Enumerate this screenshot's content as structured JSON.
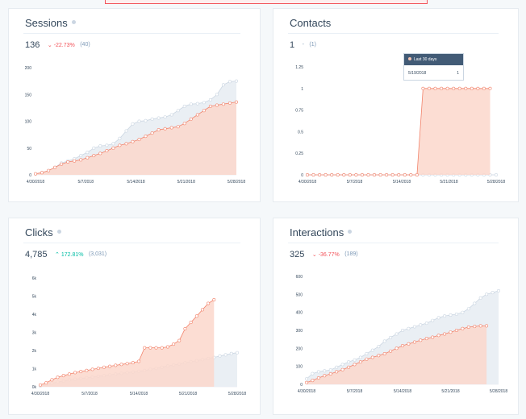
{
  "cards": [
    {
      "title": "Sessions",
      "value": "136",
      "delta": "-22.73%",
      "delta_dir": "down",
      "previous": "(40)",
      "chart_data": {
        "type": "area",
        "y_ticks": [
          "0",
          "50",
          "100",
          "150",
          "200"
        ],
        "ylim": [
          0,
          200
        ],
        "x_ticks": [
          "4/30/2018",
          "5/7/2018",
          "5/14/2018",
          "5/21/2018",
          "5/28/2018"
        ],
        "series": [
          {
            "role": "previous",
            "color": "#cbd6e2",
            "values": [
              2,
              4,
              8,
              14,
              22,
              26,
              30,
              36,
              42,
              50,
              54,
              55,
              58,
              68,
              82,
              95,
              100,
              101,
              104,
              106,
              108,
              112,
              120,
              128,
              132,
              133,
              135,
              140,
              150,
              168,
              174,
              175
            ]
          },
          {
            "role": "current",
            "color": "#f2836b",
            "values": [
              2,
              4,
              8,
              14,
              20,
              24,
              26,
              28,
              32,
              36,
              40,
              45,
              50,
              55,
              58,
              62,
              66,
              72,
              78,
              84,
              86,
              88,
              90,
              96,
              104,
              112,
              120,
              128,
              130,
              132,
              134,
              136
            ]
          }
        ]
      }
    },
    {
      "title": "Contacts",
      "value": "1",
      "delta": "-",
      "delta_dir": "none",
      "previous": "(1)",
      "tooltip": {
        "header": "Last 30 days",
        "date": "5/19/2018",
        "value": "1"
      },
      "chart_data": {
        "type": "area",
        "y_ticks": [
          "0",
          "0.25",
          "0.5",
          "0.75",
          "1",
          "1.25"
        ],
        "ylim": [
          0,
          1.25
        ],
        "x_ticks": [
          "4/30/2018",
          "5/7/2018",
          "5/14/2018",
          "5/21/2018",
          "5/28/2018"
        ],
        "series": [
          {
            "role": "previous",
            "color": "#cbd6e2",
            "values": [
              0,
              0,
              0,
              0,
              0,
              0,
              0,
              0,
              0,
              0,
              0,
              0,
              0,
              0,
              0,
              0,
              0,
              0,
              0,
              0,
              0,
              0,
              0,
              0,
              0,
              0,
              0,
              0,
              0,
              0,
              0,
              0
            ]
          },
          {
            "role": "current",
            "color": "#f2836b",
            "values": [
              0,
              0,
              0,
              0,
              0,
              0,
              0,
              0,
              0,
              0,
              0,
              0,
              0,
              0,
              0,
              0,
              0,
              0,
              0,
              1,
              1,
              1,
              1,
              1,
              1,
              1,
              1,
              1,
              1,
              1,
              1
            ]
          }
        ]
      }
    },
    {
      "title": "Clicks",
      "value": "4,785",
      "delta": "172.81%",
      "delta_dir": "up",
      "previous": "(3,031)",
      "chart_data": {
        "type": "area",
        "y_ticks": [
          "0k",
          "1k",
          "2k",
          "3k",
          "4k",
          "5k",
          "6k"
        ],
        "ylim": [
          0,
          6000
        ],
        "x_ticks": [
          "4/30/2018",
          "5/7/2018",
          "5/14/2018",
          "5/21/2018",
          "5/28/2018"
        ],
        "series": [
          {
            "role": "previous",
            "color": "#cbd6e2",
            "values": [
              50,
              120,
              200,
              260,
              320,
              380,
              420,
              460,
              500,
              540,
              580,
              620,
              660,
              700,
              740,
              780,
              820,
              860,
              900,
              960,
              1020,
              1080,
              1140,
              1200,
              1260,
              1320,
              1380,
              1440,
              1500,
              1560,
              1620,
              1700,
              1760,
              1830,
              1880
            ]
          },
          {
            "role": "current",
            "color": "#f2836b",
            "values": [
              100,
              220,
              380,
              520,
              620,
              700,
              780,
              840,
              900,
              960,
              1020,
              1080,
              1130,
              1180,
              1230,
              1280,
              1330,
              1400,
              2150,
              2150,
              2150,
              2150,
              2200,
              2350,
              2550,
              3200,
              3550,
              3900,
              4250,
              4600,
              4800
            ]
          }
        ]
      }
    },
    {
      "title": "Interactions",
      "value": "325",
      "delta": "-36.77%",
      "delta_dir": "down",
      "previous": "(189)",
      "chart_data": {
        "type": "area",
        "y_ticks": [
          "0",
          "100",
          "200",
          "300",
          "400",
          "500",
          "600"
        ],
        "ylim": [
          0,
          600
        ],
        "x_ticks": [
          "4/30/2018",
          "5/7/2018",
          "5/14/2018",
          "5/21/2018",
          "5/28/2018"
        ],
        "series": [
          {
            "role": "previous",
            "color": "#cbd6e2",
            "values": [
              30,
              60,
              70,
              75,
              80,
              95,
              110,
              125,
              135,
              150,
              170,
              190,
              210,
              240,
              260,
              280,
              300,
              310,
              320,
              330,
              340,
              355,
              370,
              380,
              385,
              390,
              400,
              420,
              450,
              480,
              500,
              510,
              520
            ]
          },
          {
            "role": "current",
            "color": "#f2836b",
            "values": [
              10,
              22,
              36,
              48,
              58,
              70,
              82,
              95,
              110,
              125,
              140,
              150,
              160,
              170,
              185,
              200,
              215,
              225,
              235,
              245,
              255,
              262,
              272,
              280,
              290,
              300,
              310,
              318,
              322,
              325,
              325
            ]
          }
        ]
      }
    }
  ]
}
